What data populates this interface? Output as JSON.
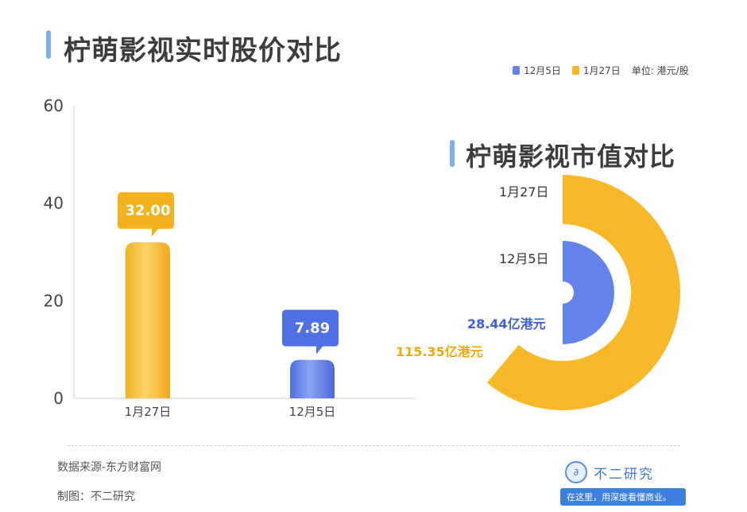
{
  "header": {
    "title": "柠萌影视实时股价对比"
  },
  "legend": {
    "items": [
      "12月5日",
      "1月27日"
    ],
    "unit": "单位: 港元/股"
  },
  "donut": {
    "title": "柠萌影视市值对比"
  },
  "footer": {
    "source": "数据来源-东方财富网",
    "credit": "制图：不二研究"
  },
  "logo": {
    "icon": "∂",
    "name": "不二研究",
    "slogan": "在这里，用深度看懂商业。"
  },
  "colors": {
    "blue": "#6483ea",
    "gold": "#f7b82a",
    "title_bar": "#7fb0ee"
  },
  "chart_data": [
    {
      "type": "bar",
      "title": "柠萌影视实时股价对比",
      "categories": [
        "1月27日",
        "12月5日"
      ],
      "values": [
        32.0,
        7.89
      ],
      "data_labels": [
        "32.00",
        "7.89"
      ],
      "ylim": [
        0,
        60
      ],
      "yticks": [
        0,
        20,
        40,
        60
      ],
      "ylabel": "",
      "xlabel": "",
      "unit": "单位: 港元/股",
      "grid": false
    },
    {
      "type": "pie",
      "style": "concentric-semi-donut",
      "title": "柠萌影视市值对比",
      "categories": [
        "1月27日",
        "12月5日"
      ],
      "values": [
        115.35,
        28.44
      ],
      "data_labels": [
        "115.35亿港元",
        "28.44亿港元"
      ],
      "unit": "亿港元"
    }
  ]
}
